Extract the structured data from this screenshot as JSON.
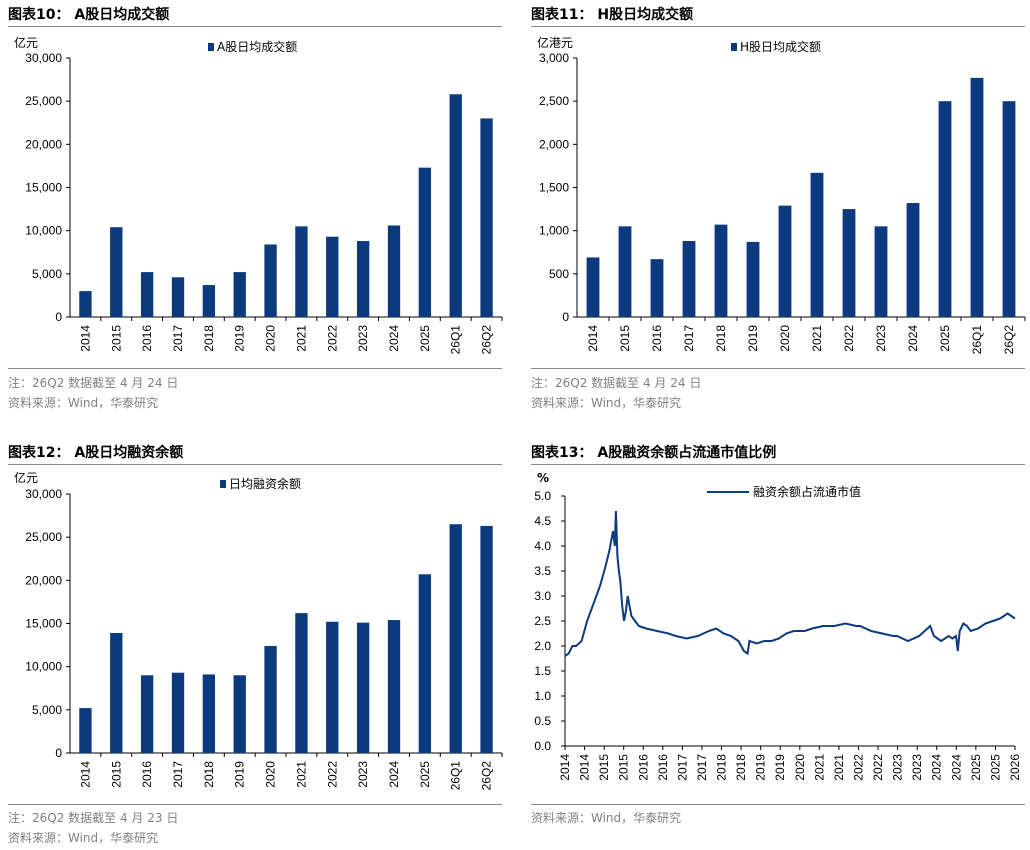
{
  "colors": {
    "bar": "#0b3a7e",
    "line": "#0b3a7e",
    "note": "#808080",
    "rule": "#8a8a8a"
  },
  "panels": [
    {
      "title": "图表10：  A股日均成交额",
      "unit": "亿元",
      "note1": "注：26Q2 数据截至 4 月 24 日",
      "note2": "资料来源：Wind，华泰研究"
    },
    {
      "title": "图表11：  H股日均成交额",
      "unit": "亿港元",
      "note1": "注：26Q2 数据截至 4 月 24 日",
      "note2": "资料来源：Wind，华泰研究"
    },
    {
      "title": "图表12：  A股日均融资余额",
      "unit": "亿元",
      "note1": "注：26Q2 数据截至 4 月 23 日",
      "note2": "资料来源：Wind，华泰研究"
    },
    {
      "title": "图表13：  A股融资余额占流通市值比例",
      "unit": "%",
      "note1": "资料来源：Wind，华泰研究",
      "note2": ""
    }
  ],
  "chart_data": [
    {
      "type": "bar",
      "legend": "A股日均成交额",
      "categories": [
        "2014",
        "2015",
        "2016",
        "2017",
        "2018",
        "2019",
        "2020",
        "2021",
        "2022",
        "2023",
        "2024",
        "2025",
        "26Q1",
        "26Q2"
      ],
      "values": [
        3000,
        10400,
        5200,
        4600,
        3700,
        5200,
        8400,
        10500,
        9300,
        8800,
        10600,
        17300,
        25800,
        23000
      ],
      "ylim": [
        0,
        30000
      ],
      "yticks": [
        "0",
        "5,000",
        "10,000",
        "15,000",
        "20,000",
        "25,000",
        "30,000"
      ]
    },
    {
      "type": "bar",
      "legend": "H股日均成交额",
      "categories": [
        "2014",
        "2015",
        "2016",
        "2017",
        "2018",
        "2019",
        "2020",
        "2021",
        "2022",
        "2023",
        "2024",
        "2025",
        "26Q1",
        "26Q2"
      ],
      "values": [
        690,
        1050,
        670,
        880,
        1070,
        870,
        1290,
        1670,
        1250,
        1050,
        1320,
        2500,
        2770,
        2500
      ],
      "ylim": [
        0,
        3000
      ],
      "yticks": [
        "0",
        "500",
        "1,000",
        "1,500",
        "2,000",
        "2,500",
        "3,000"
      ]
    },
    {
      "type": "bar",
      "legend": "日均融资余额",
      "categories": [
        "2014",
        "2015",
        "2016",
        "2017",
        "2018",
        "2019",
        "2020",
        "2021",
        "2022",
        "2023",
        "2024",
        "2025",
        "26Q1",
        "26Q2"
      ],
      "values": [
        5200,
        13900,
        9000,
        9300,
        9100,
        9000,
        12400,
        16200,
        15200,
        15100,
        15400,
        20700,
        26500,
        26300
      ],
      "ylim": [
        0,
        30000
      ],
      "yticks": [
        "0",
        "5,000",
        "10,000",
        "15,000",
        "20,000",
        "25,000",
        "30,000"
      ]
    },
    {
      "type": "line",
      "legend": "融资余额占流通市值",
      "x_ticks": [
        "2014",
        "2014",
        "2015",
        "2015",
        "2016",
        "2016",
        "2017",
        "2017",
        "2018",
        "2018",
        "2019",
        "2019",
        "2020",
        "2021",
        "2021",
        "2022",
        "2022",
        "2023",
        "2023",
        "2024",
        "2024",
        "2025",
        "2025",
        "2026"
      ],
      "ylim": [
        0,
        5
      ],
      "yticks": [
        "0.0",
        "0.5",
        "1.0",
        "1.5",
        "2.0",
        "2.5",
        "3.0",
        "3.5",
        "4.0",
        "4.5",
        "5.0"
      ],
      "xlim": [
        2014.0,
        2026.2
      ],
      "x": [
        2014.0,
        2014.1,
        2014.2,
        2014.3,
        2014.45,
        2014.6,
        2014.8,
        2014.95,
        2015.1,
        2015.2,
        2015.3,
        2015.35,
        2015.38,
        2015.42,
        2015.46,
        2015.5,
        2015.55,
        2015.6,
        2015.65,
        2015.7,
        2015.8,
        2015.9,
        2016.0,
        2016.2,
        2016.5,
        2016.8,
        2017.0,
        2017.3,
        2017.6,
        2017.9,
        2018.1,
        2018.3,
        2018.5,
        2018.7,
        2018.85,
        2018.95,
        2019.0,
        2019.2,
        2019.4,
        2019.6,
        2019.8,
        2020.0,
        2020.2,
        2020.5,
        2020.7,
        2021.0,
        2021.3,
        2021.6,
        2021.9,
        2022.0,
        2022.3,
        2022.6,
        2022.9,
        2023.0,
        2023.3,
        2023.6,
        2023.9,
        2024.0,
        2024.1,
        2024.2,
        2024.4,
        2024.5,
        2024.6,
        2024.65,
        2024.7,
        2024.8,
        2024.9,
        2025.0,
        2025.2,
        2025.4,
        2025.6,
        2025.8,
        2025.9,
        2026.0,
        2026.1,
        2026.2
      ],
      "y": [
        1.8,
        1.85,
        2.0,
        2.0,
        2.1,
        2.5,
        2.9,
        3.2,
        3.6,
        3.9,
        4.3,
        4.0,
        4.7,
        3.8,
        3.5,
        3.3,
        2.8,
        2.5,
        2.7,
        3.0,
        2.6,
        2.5,
        2.4,
        2.35,
        2.3,
        2.25,
        2.2,
        2.15,
        2.2,
        2.3,
        2.35,
        2.25,
        2.2,
        2.1,
        1.9,
        1.85,
        2.1,
        2.05,
        2.1,
        2.1,
        2.15,
        2.25,
        2.3,
        2.3,
        2.35,
        2.4,
        2.4,
        2.45,
        2.4,
        2.4,
        2.3,
        2.25,
        2.2,
        2.2,
        2.1,
        2.2,
        2.4,
        2.2,
        2.15,
        2.1,
        2.2,
        2.15,
        2.2,
        1.9,
        2.3,
        2.45,
        2.4,
        2.3,
        2.35,
        2.45,
        2.5,
        2.55,
        2.6,
        2.65,
        2.6,
        2.55
      ]
    }
  ]
}
